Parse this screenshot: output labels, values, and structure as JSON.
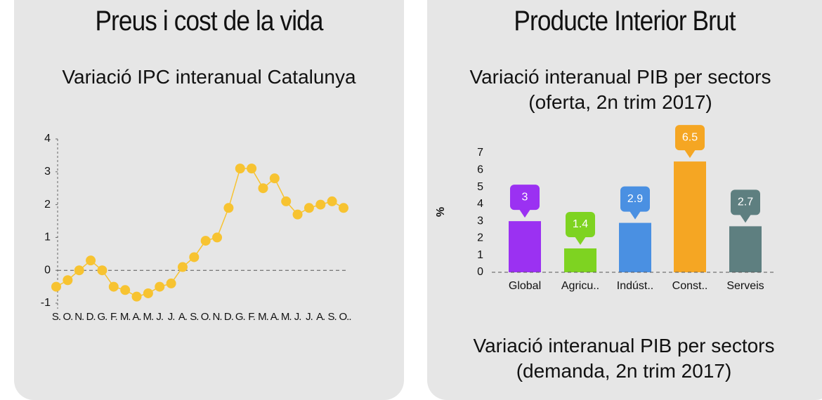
{
  "panels": [
    {
      "title": "Preus i cost de la vida"
    },
    {
      "title": "Producte Interior Brut",
      "footer_subtitle": "Variació interanual PIB per sectors (demanda, 2n trim 2017)"
    }
  ],
  "chart_data": [
    {
      "type": "line",
      "title": "Variació IPC interanual Catalunya",
      "categories": [
        "S.",
        "O.",
        "N.",
        "D.",
        "G.",
        "F.",
        "M.",
        "A.",
        "M.",
        "J.",
        "J.",
        "A.",
        "S.",
        "O.",
        "N.",
        "D.",
        "G.",
        "F.",
        "M.",
        "A.",
        "M.",
        "J.",
        "J.",
        "A.",
        "S.",
        "O.."
      ],
      "values": [
        -0.5,
        -0.3,
        0,
        0.3,
        0,
        -0.5,
        -0.6,
        -0.8,
        -0.7,
        -0.5,
        -0.4,
        0.1,
        0.4,
        0.9,
        1.0,
        1.9,
        3.1,
        3.1,
        2.5,
        2.8,
        2.1,
        1.7,
        1.9,
        2.0,
        2.1,
        1.9
      ],
      "color": "#f7c331",
      "ylim": [
        -1,
        4
      ],
      "yticks": [
        -1,
        0,
        1,
        2,
        3,
        4
      ]
    },
    {
      "type": "bar",
      "title": "Variació interanual PIB per sectors (oferta, 2n trim 2017)",
      "y_label": "%",
      "categories": [
        "Global",
        "Agricu..",
        "Indúst..",
        "Const..",
        "Serveis"
      ],
      "values": [
        3,
        1.4,
        2.9,
        6.5,
        2.7
      ],
      "colors": [
        "#9b31f2",
        "#7ed321",
        "#4a90e2",
        "#f5a623",
        "#5e7f80"
      ],
      "ylim": [
        0,
        7
      ],
      "yticks": [
        0,
        1,
        2,
        3,
        4,
        5,
        6,
        7
      ]
    }
  ]
}
